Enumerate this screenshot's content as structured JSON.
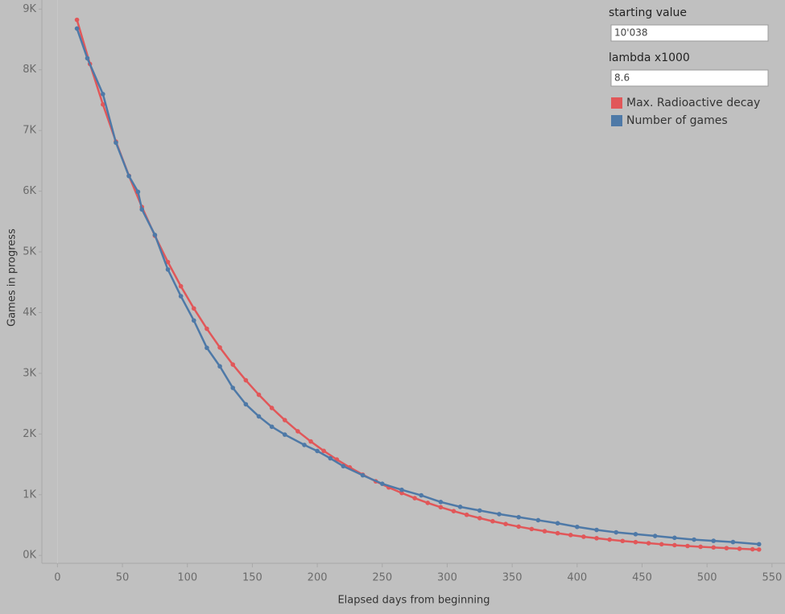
{
  "chart_data": {
    "type": "line",
    "xlabel": "Elapsed days from beginning",
    "ylabel": "Games in progress",
    "xlim": [
      -12,
      560
    ],
    "ylim": [
      -130,
      9150
    ],
    "xticks": [
      0,
      50,
      100,
      150,
      200,
      250,
      300,
      350,
      400,
      450,
      500,
      550
    ],
    "yticks": [
      {
        "value": 0,
        "label": "0K"
      },
      {
        "value": 1000,
        "label": "1K"
      },
      {
        "value": 2000,
        "label": "2K"
      },
      {
        "value": 3000,
        "label": "3K"
      },
      {
        "value": 4000,
        "label": "4K"
      },
      {
        "value": 5000,
        "label": "5K"
      },
      {
        "value": 6000,
        "label": "6K"
      },
      {
        "value": 7000,
        "label": "7K"
      },
      {
        "value": 8000,
        "label": "8K"
      },
      {
        "value": 9000,
        "label": "9K"
      }
    ],
    "controls": [
      {
        "label": "starting value",
        "value": "10'038"
      },
      {
        "label": "lambda x1000",
        "value": "8.6"
      }
    ],
    "series": [
      {
        "name": "Max. Radioactive decay",
        "color": "#e15759",
        "x": [
          15,
          25,
          35,
          45,
          55,
          65,
          75,
          85,
          95,
          105,
          115,
          125,
          135,
          145,
          155,
          165,
          175,
          185,
          195,
          205,
          215,
          225,
          235,
          245,
          255,
          265,
          275,
          285,
          295,
          305,
          315,
          325,
          335,
          345,
          355,
          365,
          375,
          385,
          395,
          405,
          415,
          425,
          435,
          445,
          455,
          465,
          475,
          485,
          495,
          505,
          515,
          525,
          535,
          540
        ],
        "values": [
          8823,
          8096,
          7429,
          6817,
          6255,
          5740,
          5267,
          4833,
          4434,
          4069,
          3734,
          3426,
          3144,
          2885,
          2647,
          2429,
          2229,
          2045,
          1877,
          1722,
          1580,
          1450,
          1330,
          1221,
          1120,
          1028,
          943,
          865,
          794,
          729,
          669,
          614,
          563,
          517,
          474,
          435,
          399,
          366,
          336,
          308,
          283,
          260,
          238,
          219,
          201,
          184,
          169,
          155,
          142,
          131,
          120,
          110,
          101,
          97
        ]
      },
      {
        "name": "Number of games",
        "color": "#4e79a7",
        "x": [
          15,
          23,
          35,
          45,
          55,
          62,
          65,
          75,
          85,
          95,
          105,
          115,
          125,
          135,
          145,
          155,
          165,
          175,
          190,
          200,
          210,
          220,
          235,
          250,
          265,
          280,
          295,
          310,
          325,
          340,
          355,
          370,
          385,
          400,
          415,
          430,
          445,
          460,
          475,
          490,
          505,
          520,
          540
        ],
        "values": [
          8680,
          8190,
          7600,
          6800,
          6250,
          5990,
          5700,
          5280,
          4710,
          4270,
          3870,
          3420,
          3115,
          2760,
          2490,
          2290,
          2120,
          1990,
          1820,
          1720,
          1600,
          1470,
          1320,
          1180,
          1080,
          990,
          880,
          800,
          740,
          680,
          630,
          580,
          530,
          470,
          420,
          380,
          350,
          320,
          290,
          260,
          240,
          220,
          185
        ]
      }
    ]
  }
}
